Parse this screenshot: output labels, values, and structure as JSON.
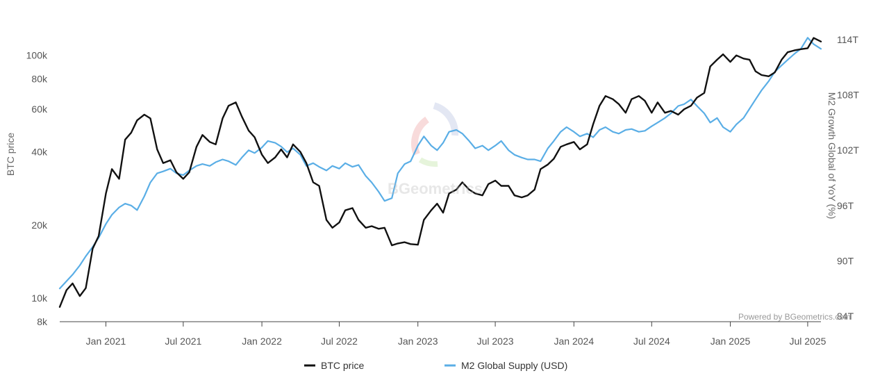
{
  "chart_data": {
    "type": "line",
    "title": "",
    "ylabel_left": "BTC price",
    "ylabel_right": "M2 Growth Global of YoY (%)",
    "y_left_scale": "log",
    "y_left_ticks": [
      "8k",
      "10k",
      "20k",
      "40k",
      "60k",
      "80k",
      "100k"
    ],
    "y_left_tick_values": [
      8000,
      10000,
      20000,
      40000,
      60000,
      80000,
      100000
    ],
    "y_left_range": [
      8000,
      120000
    ],
    "y_right_ticks": [
      "84T",
      "90T",
      "96T",
      "102T",
      "108T",
      "114T"
    ],
    "y_right_tick_values": [
      84,
      90,
      96,
      102,
      108,
      114
    ],
    "y_right_range": [
      84,
      114
    ],
    "x_ticks": [
      "Jan 2021",
      "Jul 2021",
      "Jan 2022",
      "Jul 2022",
      "Jan 2023",
      "Jul 2023",
      "Jan 2024",
      "Jul 2024",
      "Jan 2025",
      "Jul 2025"
    ],
    "x_tick_dates": [
      "2021-01-01",
      "2021-07-01",
      "2022-01-01",
      "2022-07-01",
      "2023-01-01",
      "2023-07-01",
      "2024-01-01",
      "2024-07-01",
      "2025-01-01",
      "2025-07-01"
    ],
    "x_range": [
      "2020-09-15",
      "2025-08-01"
    ],
    "legend_position": "bottom",
    "credit": "Powered by BGeometrics.com",
    "watermark": "BGeometrics",
    "series": [
      {
        "name": "BTC price",
        "axis": "left",
        "color": "#111111",
        "points": [
          [
            "2020-09-15",
            9200
          ],
          [
            "2020-10-01",
            10800
          ],
          [
            "2020-10-15",
            11500
          ],
          [
            "2020-11-01",
            10200
          ],
          [
            "2020-11-15",
            11000
          ],
          [
            "2020-12-01",
            16000
          ],
          [
            "2020-12-15",
            18000
          ],
          [
            "2021-01-01",
            27000
          ],
          [
            "2021-01-15",
            34000
          ],
          [
            "2021-02-01",
            31000
          ],
          [
            "2021-02-15",
            45000
          ],
          [
            "2021-03-01",
            48000
          ],
          [
            "2021-03-15",
            54000
          ],
          [
            "2021-04-01",
            57000
          ],
          [
            "2021-04-15",
            55000
          ],
          [
            "2021-05-01",
            41000
          ],
          [
            "2021-05-15",
            36000
          ],
          [
            "2021-06-01",
            37000
          ],
          [
            "2021-06-15",
            33000
          ],
          [
            "2021-07-01",
            31000
          ],
          [
            "2021-07-15",
            33000
          ],
          [
            "2021-08-01",
            42000
          ],
          [
            "2021-08-15",
            47000
          ],
          [
            "2021-09-01",
            44000
          ],
          [
            "2021-09-15",
            43000
          ],
          [
            "2021-10-01",
            55000
          ],
          [
            "2021-10-15",
            62000
          ],
          [
            "2021-11-01",
            64000
          ],
          [
            "2021-11-15",
            56000
          ],
          [
            "2021-12-01",
            49000
          ],
          [
            "2021-12-15",
            46000
          ],
          [
            "2022-01-01",
            39000
          ],
          [
            "2022-01-15",
            36000
          ],
          [
            "2022-02-01",
            38000
          ],
          [
            "2022-02-15",
            41000
          ],
          [
            "2022-03-01",
            38000
          ],
          [
            "2022-03-15",
            43000
          ],
          [
            "2022-04-01",
            40000
          ],
          [
            "2022-04-15",
            36000
          ],
          [
            "2022-05-01",
            30000
          ],
          [
            "2022-05-15",
            29000
          ],
          [
            "2022-06-01",
            21000
          ],
          [
            "2022-06-15",
            19500
          ],
          [
            "2022-07-01",
            20500
          ],
          [
            "2022-07-15",
            23000
          ],
          [
            "2022-08-01",
            23500
          ],
          [
            "2022-08-15",
            21000
          ],
          [
            "2022-09-01",
            19500
          ],
          [
            "2022-09-15",
            19800
          ],
          [
            "2022-10-01",
            19300
          ],
          [
            "2022-10-15",
            19500
          ],
          [
            "2022-11-01",
            16500
          ],
          [
            "2022-11-15",
            16800
          ],
          [
            "2022-12-01",
            17000
          ],
          [
            "2022-12-15",
            16700
          ],
          [
            "2023-01-01",
            16600
          ],
          [
            "2023-01-15",
            21000
          ],
          [
            "2023-02-01",
            23000
          ],
          [
            "2023-02-15",
            24500
          ],
          [
            "2023-03-01",
            22500
          ],
          [
            "2023-03-15",
            27000
          ],
          [
            "2023-04-01",
            28000
          ],
          [
            "2023-04-15",
            30000
          ],
          [
            "2023-05-01",
            28000
          ],
          [
            "2023-05-15",
            27000
          ],
          [
            "2023-06-01",
            26500
          ],
          [
            "2023-06-15",
            29500
          ],
          [
            "2023-07-01",
            30500
          ],
          [
            "2023-07-15",
            29000
          ],
          [
            "2023-08-01",
            29000
          ],
          [
            "2023-08-15",
            26500
          ],
          [
            "2023-09-01",
            26000
          ],
          [
            "2023-09-15",
            26500
          ],
          [
            "2023-10-01",
            28000
          ],
          [
            "2023-10-15",
            34000
          ],
          [
            "2023-11-01",
            35500
          ],
          [
            "2023-11-15",
            37500
          ],
          [
            "2023-12-01",
            42000
          ],
          [
            "2023-12-15",
            43000
          ],
          [
            "2024-01-01",
            44000
          ],
          [
            "2024-01-15",
            41000
          ],
          [
            "2024-02-01",
            43000
          ],
          [
            "2024-02-15",
            52000
          ],
          [
            "2024-03-01",
            62000
          ],
          [
            "2024-03-15",
            68000
          ],
          [
            "2024-04-01",
            66000
          ],
          [
            "2024-04-15",
            63000
          ],
          [
            "2024-05-01",
            58000
          ],
          [
            "2024-05-15",
            66000
          ],
          [
            "2024-06-01",
            68000
          ],
          [
            "2024-06-15",
            65000
          ],
          [
            "2024-07-01",
            58000
          ],
          [
            "2024-07-15",
            64000
          ],
          [
            "2024-08-01",
            58000
          ],
          [
            "2024-08-15",
            59000
          ],
          [
            "2024-09-01",
            57000
          ],
          [
            "2024-09-15",
            60000
          ],
          [
            "2024-10-01",
            62000
          ],
          [
            "2024-10-15",
            67000
          ],
          [
            "2024-11-01",
            70000
          ],
          [
            "2024-11-15",
            90000
          ],
          [
            "2024-12-01",
            96000
          ],
          [
            "2024-12-15",
            101000
          ],
          [
            "2025-01-01",
            94000
          ],
          [
            "2025-01-15",
            100000
          ],
          [
            "2025-02-01",
            97000
          ],
          [
            "2025-02-15",
            96000
          ],
          [
            "2025-03-01",
            86000
          ],
          [
            "2025-03-15",
            83000
          ],
          [
            "2025-04-01",
            82000
          ],
          [
            "2025-04-15",
            85000
          ],
          [
            "2025-05-01",
            96000
          ],
          [
            "2025-05-15",
            103000
          ],
          [
            "2025-06-01",
            105000
          ],
          [
            "2025-06-15",
            106000
          ],
          [
            "2025-07-01",
            107000
          ],
          [
            "2025-07-15",
            118000
          ],
          [
            "2025-08-01",
            114000
          ]
        ]
      },
      {
        "name": "M2 Global Supply (USD)",
        "axis": "right",
        "color": "#5aaee6",
        "points": [
          [
            "2020-09-15",
            87.0
          ],
          [
            "2020-10-01",
            87.8
          ],
          [
            "2020-10-15",
            88.5
          ],
          [
            "2020-11-01",
            89.5
          ],
          [
            "2020-11-15",
            90.5
          ],
          [
            "2020-12-01",
            91.5
          ],
          [
            "2020-12-15",
            92.5
          ],
          [
            "2021-01-01",
            94.0
          ],
          [
            "2021-01-15",
            95.0
          ],
          [
            "2021-02-01",
            95.8
          ],
          [
            "2021-02-15",
            96.2
          ],
          [
            "2021-03-01",
            96.0
          ],
          [
            "2021-03-15",
            95.5
          ],
          [
            "2021-04-01",
            97.0
          ],
          [
            "2021-04-15",
            98.5
          ],
          [
            "2021-05-01",
            99.5
          ],
          [
            "2021-05-15",
            99.7
          ],
          [
            "2021-06-01",
            100.0
          ],
          [
            "2021-06-15",
            99.5
          ],
          [
            "2021-07-01",
            99.3
          ],
          [
            "2021-07-15",
            99.8
          ],
          [
            "2021-08-01",
            100.3
          ],
          [
            "2021-08-15",
            100.5
          ],
          [
            "2021-09-01",
            100.3
          ],
          [
            "2021-09-15",
            100.7
          ],
          [
            "2021-10-01",
            101.0
          ],
          [
            "2021-10-15",
            100.8
          ],
          [
            "2021-11-01",
            100.4
          ],
          [
            "2021-11-15",
            101.2
          ],
          [
            "2021-12-01",
            102.0
          ],
          [
            "2021-12-15",
            101.7
          ],
          [
            "2022-01-01",
            102.3
          ],
          [
            "2022-01-15",
            103.0
          ],
          [
            "2022-02-01",
            102.8
          ],
          [
            "2022-02-15",
            102.4
          ],
          [
            "2022-03-01",
            101.8
          ],
          [
            "2022-03-15",
            102.2
          ],
          [
            "2022-04-01",
            101.5
          ],
          [
            "2022-04-15",
            100.3
          ],
          [
            "2022-05-01",
            100.6
          ],
          [
            "2022-05-15",
            100.2
          ],
          [
            "2022-06-01",
            99.8
          ],
          [
            "2022-06-15",
            100.3
          ],
          [
            "2022-07-01",
            100.0
          ],
          [
            "2022-07-15",
            100.6
          ],
          [
            "2022-08-01",
            100.2
          ],
          [
            "2022-08-15",
            100.4
          ],
          [
            "2022-09-01",
            99.2
          ],
          [
            "2022-09-15",
            98.5
          ],
          [
            "2022-10-01",
            97.5
          ],
          [
            "2022-10-15",
            96.5
          ],
          [
            "2022-11-01",
            96.8
          ],
          [
            "2022-11-15",
            99.5
          ],
          [
            "2022-12-01",
            100.5
          ],
          [
            "2022-12-15",
            100.8
          ],
          [
            "2023-01-01",
            102.5
          ],
          [
            "2023-01-15",
            103.5
          ],
          [
            "2023-02-01",
            102.5
          ],
          [
            "2023-02-15",
            102.0
          ],
          [
            "2023-03-01",
            102.8
          ],
          [
            "2023-03-15",
            104.0
          ],
          [
            "2023-04-01",
            104.2
          ],
          [
            "2023-04-15",
            103.8
          ],
          [
            "2023-05-01",
            103.0
          ],
          [
            "2023-05-15",
            102.2
          ],
          [
            "2023-06-01",
            102.5
          ],
          [
            "2023-06-15",
            102.0
          ],
          [
            "2023-07-01",
            102.5
          ],
          [
            "2023-07-15",
            103.0
          ],
          [
            "2023-08-01",
            102.0
          ],
          [
            "2023-08-15",
            101.5
          ],
          [
            "2023-09-01",
            101.2
          ],
          [
            "2023-09-15",
            101.0
          ],
          [
            "2023-10-01",
            101.0
          ],
          [
            "2023-10-15",
            100.8
          ],
          [
            "2023-11-01",
            102.2
          ],
          [
            "2023-11-15",
            103.0
          ],
          [
            "2023-12-01",
            104.0
          ],
          [
            "2023-12-15",
            104.5
          ],
          [
            "2024-01-01",
            104.0
          ],
          [
            "2024-01-15",
            103.5
          ],
          [
            "2024-02-01",
            103.8
          ],
          [
            "2024-02-15",
            103.4
          ],
          [
            "2024-03-01",
            104.2
          ],
          [
            "2024-03-15",
            104.5
          ],
          [
            "2024-04-01",
            104.0
          ],
          [
            "2024-04-15",
            103.8
          ],
          [
            "2024-05-01",
            104.2
          ],
          [
            "2024-05-15",
            104.3
          ],
          [
            "2024-06-01",
            104.0
          ],
          [
            "2024-06-15",
            104.1
          ],
          [
            "2024-07-01",
            104.6
          ],
          [
            "2024-07-15",
            105.0
          ],
          [
            "2024-08-01",
            105.5
          ],
          [
            "2024-08-15",
            106.0
          ],
          [
            "2024-09-01",
            106.8
          ],
          [
            "2024-09-15",
            107.0
          ],
          [
            "2024-10-01",
            107.5
          ],
          [
            "2024-10-15",
            106.8
          ],
          [
            "2024-11-01",
            106.0
          ],
          [
            "2024-11-15",
            105.0
          ],
          [
            "2024-12-01",
            105.5
          ],
          [
            "2024-12-15",
            104.5
          ],
          [
            "2025-01-01",
            104.0
          ],
          [
            "2025-01-15",
            104.8
          ],
          [
            "2025-02-01",
            105.5
          ],
          [
            "2025-02-15",
            106.5
          ],
          [
            "2025-03-01",
            107.5
          ],
          [
            "2025-03-15",
            108.5
          ],
          [
            "2025-04-01",
            109.5
          ],
          [
            "2025-04-15",
            110.5
          ],
          [
            "2025-05-01",
            111.2
          ],
          [
            "2025-05-15",
            111.8
          ],
          [
            "2025-06-01",
            112.5
          ],
          [
            "2025-06-15",
            113.0
          ],
          [
            "2025-07-01",
            114.2
          ],
          [
            "2025-07-15",
            113.5
          ],
          [
            "2025-08-01",
            113.0
          ]
        ]
      }
    ]
  }
}
